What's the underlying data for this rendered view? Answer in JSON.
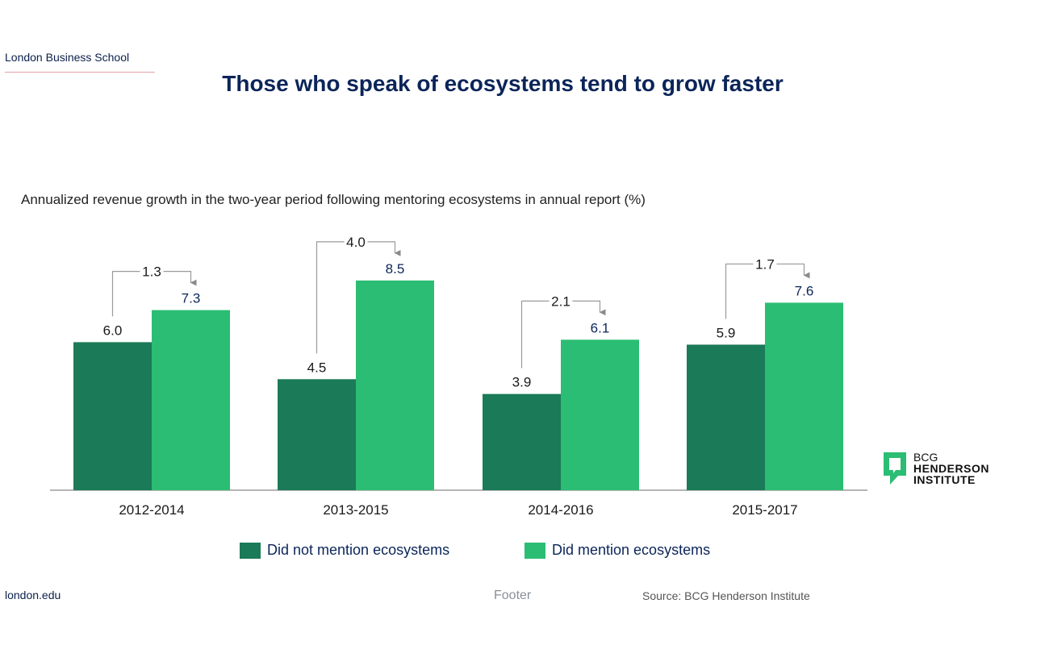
{
  "header": {
    "brand": "London Business School"
  },
  "colors": {
    "did_not": "#1b7a57",
    "did": "#2bbd73",
    "title": "#0b2559",
    "connector": "#9a9a9a"
  },
  "chart_data": {
    "type": "bar",
    "title": "Those who speak of ecosystems tend to grow faster",
    "subtitle": "Annualized revenue growth in the two-year period following mentoring ecosystems in annual report (%)",
    "categories": [
      "2012-2014",
      "2013-2015",
      "2014-2016",
      "2015-2017"
    ],
    "series": [
      {
        "name": "Did not mention ecosystems",
        "values": [
          6.0,
          4.5,
          3.9,
          5.9
        ]
      },
      {
        "name": "Did mention ecosystems",
        "values": [
          7.3,
          8.5,
          6.1,
          7.6
        ]
      }
    ],
    "value_labels": [
      [
        "6.0",
        "4.5",
        "3.9",
        "5.9"
      ],
      [
        "7.3",
        "8.5",
        "6.1",
        "7.6"
      ]
    ],
    "differences": [
      "1.3",
      "4.0",
      "2.1",
      "1.7"
    ],
    "ylim": [
      0,
      10
    ],
    "legend_position": "bottom",
    "grid": false
  },
  "logo": {
    "line1": "BCG",
    "line2": "HENDERSON",
    "line3": "INSTITUTE"
  },
  "footer": {
    "url": "london.edu",
    "middle": "Footer",
    "source": "Source: BCG Henderson Institute"
  }
}
